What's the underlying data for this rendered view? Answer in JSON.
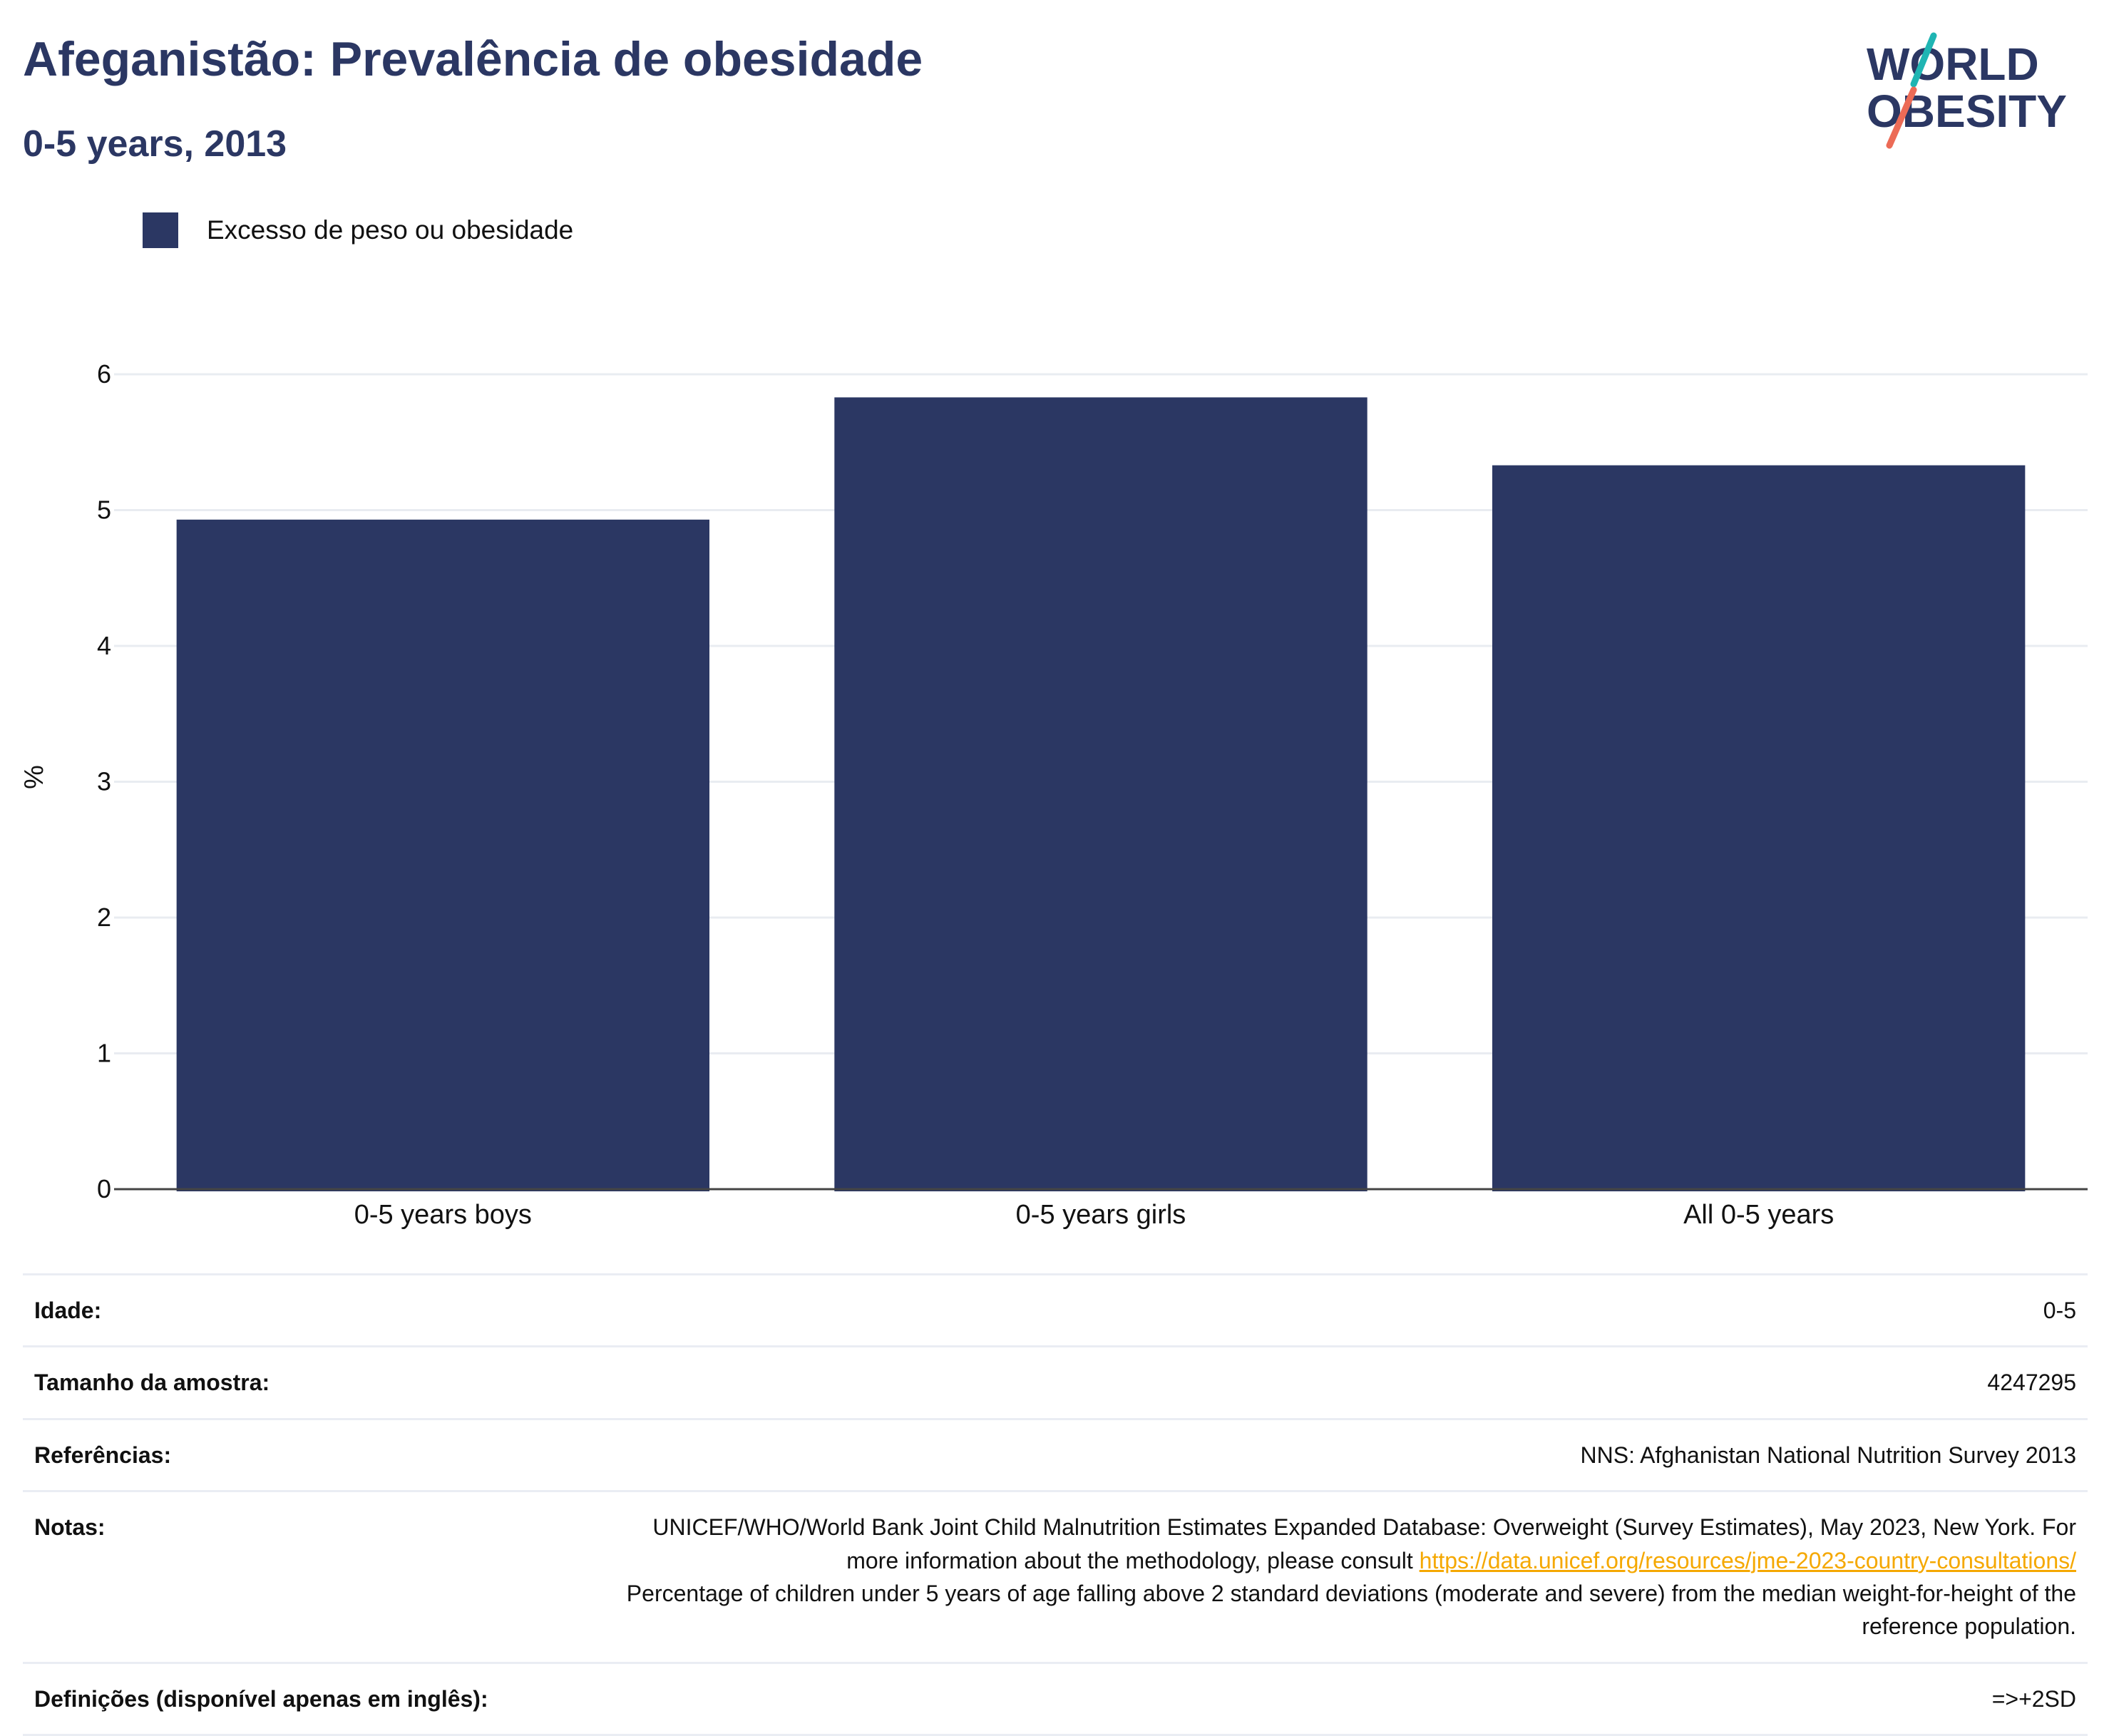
{
  "header": {
    "title": "Afeganistão: Prevalência de obesidade",
    "subtitle": "0-5 years, 2013"
  },
  "logo": {
    "line1": "WORLD",
    "line2": "OBESITY",
    "colors": {
      "text": "#2b3763",
      "slash_teal": "#1fb5b3",
      "slash_coral": "#ec6b56"
    }
  },
  "chart_data": {
    "type": "bar",
    "categories": [
      "0-5 years boys",
      "0-5 years girls",
      "All 0-5 years"
    ],
    "series": [
      {
        "name": "Excesso de peso ou obesidade",
        "values": [
          4.93,
          5.83,
          5.33
        ],
        "color": "#2b3763"
      }
    ],
    "ylabel": "%",
    "ylim": [
      0,
      6.5
    ],
    "yticks": [
      0,
      1,
      2,
      3,
      4,
      5,
      6
    ],
    "grid": true,
    "legend_position": "top-left"
  },
  "info": {
    "age_label": "Idade:",
    "age_value": "0-5",
    "sample_label": "Tamanho da amostra:",
    "sample_value": "4247295",
    "refs_label": "Referências:",
    "refs_value": "NNS: Afghanistan National Nutrition Survey 2013",
    "notes_label": "Notas:",
    "notes_text1": "UNICEF/WHO/World Bank Joint Child Malnutrition Estimates Expanded Database: Overweight (Survey Estimates), May 2023, New York. For more information about the methodology, please consult ",
    "notes_link": "https://data.unicef.org/resources/jme-2023-country-consultations/",
    "notes_text2": "Percentage of children under 5 years of age falling above 2 standard deviations (moderate and severe) from the median weight-for-height of the reference population.",
    "defs_label": "Definições (disponível apenas em inglês):",
    "defs_value": "=>+2SD"
  }
}
